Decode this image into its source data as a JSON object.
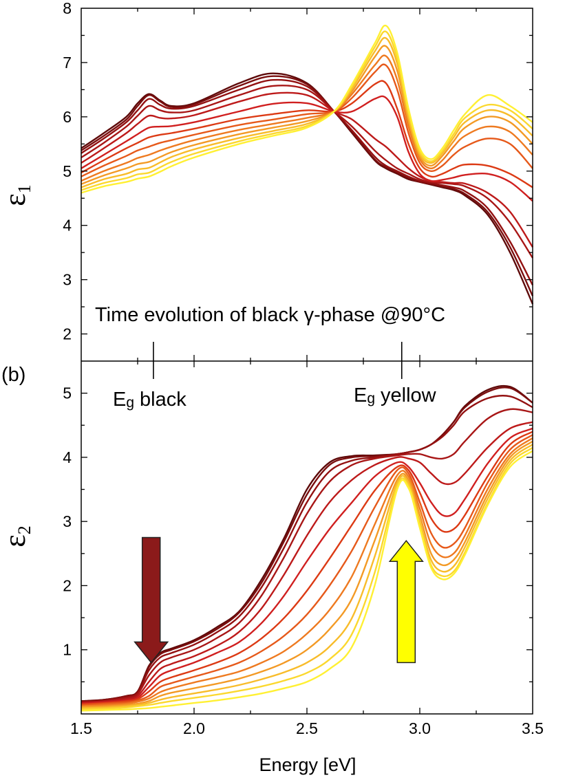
{
  "panel_label": "(b)",
  "chart_data": [
    {
      "type": "line",
      "panel": "top",
      "ylabel": "ε",
      "ylabel_subscript": "1",
      "xlim": [
        1.5,
        3.5
      ],
      "ylim": [
        1.5,
        8.0
      ],
      "yticks": [
        "2",
        "3",
        "4",
        "5",
        "6",
        "7",
        "8"
      ],
      "annotation": "Time evolution of black γ-phase @90°C",
      "colors": [
        "#5e0a0a",
        "#7a0e0e",
        "#931111",
        "#a81616",
        "#bd1a1a",
        "#d01f1f",
        "#dc3a14",
        "#e6591a",
        "#ee7a20",
        "#f39a25",
        "#f8bc2a",
        "#fbd82e",
        "#fff033"
      ],
      "x": [
        1.5,
        1.6,
        1.7,
        1.75,
        1.8,
        1.85,
        1.9,
        2.0,
        2.2,
        2.35,
        2.5,
        2.62,
        2.7,
        2.8,
        2.85,
        2.9,
        2.95,
        3.0,
        3.05,
        3.1,
        3.15,
        3.2,
        3.3,
        3.4,
        3.5
      ],
      "series": [
        {
          "values": [
            5.42,
            5.7,
            6.0,
            6.25,
            6.42,
            6.3,
            6.2,
            6.25,
            6.62,
            6.8,
            6.62,
            6.1,
            5.7,
            5.2,
            5.05,
            4.95,
            4.85,
            4.8,
            4.75,
            4.7,
            4.65,
            4.55,
            4.2,
            3.5,
            2.55
          ]
        },
        {
          "values": [
            5.38,
            5.65,
            5.95,
            6.2,
            6.4,
            6.28,
            6.18,
            6.23,
            6.57,
            6.75,
            6.6,
            6.1,
            5.72,
            5.22,
            5.07,
            4.97,
            4.87,
            4.8,
            4.76,
            4.72,
            4.67,
            4.58,
            4.25,
            3.6,
            2.7
          ]
        },
        {
          "values": [
            5.33,
            5.6,
            5.9,
            6.12,
            6.33,
            6.22,
            6.15,
            6.2,
            6.5,
            6.68,
            6.56,
            6.1,
            5.75,
            5.27,
            5.1,
            5.0,
            4.9,
            4.82,
            4.78,
            4.74,
            4.7,
            4.63,
            4.32,
            3.7,
            2.9
          ]
        },
        {
          "values": [
            5.25,
            5.52,
            5.82,
            6.02,
            6.2,
            6.12,
            6.08,
            6.12,
            6.4,
            6.57,
            6.5,
            6.1,
            5.82,
            5.38,
            5.2,
            5.05,
            4.95,
            4.85,
            4.8,
            4.78,
            4.76,
            4.72,
            4.5,
            4.05,
            3.4
          ]
        },
        {
          "values": [
            5.15,
            5.42,
            5.7,
            5.87,
            6.02,
            5.98,
            5.97,
            6.03,
            6.28,
            6.43,
            6.4,
            6.1,
            5.95,
            5.6,
            5.45,
            5.25,
            5.05,
            4.9,
            4.82,
            4.8,
            4.78,
            4.77,
            4.6,
            4.25,
            3.6
          ]
        },
        {
          "values": [
            5.05,
            5.3,
            5.55,
            5.68,
            5.8,
            5.82,
            5.83,
            5.9,
            6.1,
            6.24,
            6.25,
            6.1,
            6.1,
            6.33,
            6.35,
            6.0,
            5.35,
            4.95,
            4.82,
            4.84,
            4.88,
            4.93,
            4.95,
            4.8,
            4.45
          ]
        },
        {
          "values": [
            4.97,
            5.2,
            5.42,
            5.52,
            5.62,
            5.67,
            5.7,
            5.78,
            5.96,
            6.05,
            6.12,
            6.1,
            6.25,
            6.6,
            6.62,
            6.15,
            5.5,
            5.05,
            4.9,
            4.95,
            5.05,
            5.12,
            5.1,
            4.95,
            4.7
          ]
        },
        {
          "values": [
            4.9,
            5.1,
            5.28,
            5.38,
            5.45,
            5.52,
            5.57,
            5.67,
            5.85,
            5.95,
            6.05,
            6.1,
            6.35,
            6.82,
            6.95,
            6.5,
            5.7,
            5.15,
            5.0,
            5.1,
            5.3,
            5.45,
            5.6,
            5.5,
            5.05
          ]
        },
        {
          "values": [
            4.82,
            5.0,
            5.15,
            5.24,
            5.3,
            5.38,
            5.45,
            5.57,
            5.76,
            5.87,
            5.98,
            6.1,
            6.42,
            6.95,
            7.12,
            6.68,
            5.82,
            5.22,
            5.05,
            5.2,
            5.45,
            5.65,
            5.82,
            5.72,
            5.3
          ]
        },
        {
          "values": [
            4.76,
            4.92,
            5.05,
            5.13,
            5.17,
            5.26,
            5.35,
            5.48,
            5.68,
            5.8,
            5.92,
            6.1,
            6.47,
            7.1,
            7.3,
            6.85,
            5.92,
            5.27,
            5.1,
            5.28,
            5.55,
            5.8,
            6.0,
            5.9,
            5.5
          ]
        },
        {
          "values": [
            4.7,
            4.85,
            4.95,
            5.03,
            5.06,
            5.16,
            5.26,
            5.4,
            5.61,
            5.74,
            5.87,
            6.1,
            6.52,
            7.2,
            7.45,
            6.98,
            6.0,
            5.32,
            5.15,
            5.33,
            5.62,
            5.9,
            6.12,
            6.02,
            5.65
          ]
        },
        {
          "values": [
            4.65,
            4.78,
            4.87,
            4.94,
            4.97,
            5.07,
            5.17,
            5.32,
            5.55,
            5.69,
            5.83,
            6.1,
            6.56,
            7.28,
            7.57,
            7.08,
            6.08,
            5.37,
            5.18,
            5.37,
            5.68,
            5.98,
            6.22,
            6.12,
            5.78
          ]
        },
        {
          "values": [
            4.6,
            4.72,
            4.8,
            4.86,
            4.9,
            4.99,
            5.09,
            5.25,
            5.5,
            5.65,
            5.8,
            6.1,
            6.6,
            7.35,
            7.68,
            7.18,
            6.15,
            5.42,
            5.22,
            5.42,
            5.75,
            6.05,
            6.4,
            6.2,
            5.9
          ]
        }
      ]
    },
    {
      "type": "line",
      "panel": "bottom",
      "ylabel": "ε",
      "ylabel_subscript": "2",
      "xlabel": "Energy [eV]",
      "xlim": [
        1.5,
        3.5
      ],
      "ylim": [
        0.0,
        5.5
      ],
      "xticks": [
        "1.5",
        "2.0",
        "2.5",
        "3.0",
        "3.5"
      ],
      "yticks": [
        "1",
        "2",
        "3",
        "4",
        "5"
      ],
      "annotations": [
        {
          "base": "E",
          "sub": "g",
          "text": "black",
          "energy": 1.82
        },
        {
          "base": "E",
          "sub": "g",
          "text": "yellow",
          "energy": 2.92
        }
      ],
      "arrows": [
        {
          "direction": "down",
          "color": "#8b1a1a",
          "energy": 1.81
        },
        {
          "direction": "up",
          "color": "#ffff00",
          "energy": 2.94
        }
      ],
      "colors": [
        "#5e0a0a",
        "#7a0e0e",
        "#931111",
        "#a81616",
        "#bd1a1a",
        "#d01f1f",
        "#dc3a14",
        "#e6591a",
        "#ee7a20",
        "#f39a25",
        "#f8bc2a",
        "#fbd82e",
        "#fff033"
      ],
      "x": [
        1.5,
        1.6,
        1.7,
        1.75,
        1.8,
        1.85,
        1.9,
        2.0,
        2.1,
        2.2,
        2.3,
        2.4,
        2.5,
        2.6,
        2.7,
        2.8,
        2.9,
        2.95,
        3.0,
        3.05,
        3.1,
        3.15,
        3.2,
        3.3,
        3.4,
        3.5
      ],
      "series": [
        {
          "values": [
            0.2,
            0.22,
            0.28,
            0.35,
            0.75,
            0.95,
            1.02,
            1.15,
            1.35,
            1.6,
            2.1,
            2.75,
            3.5,
            3.92,
            4.02,
            4.03,
            4.05,
            4.08,
            4.12,
            4.2,
            4.35,
            4.55,
            4.8,
            5.05,
            5.1,
            4.85
          ]
        },
        {
          "values": [
            0.2,
            0.22,
            0.28,
            0.35,
            0.73,
            0.93,
            1.0,
            1.13,
            1.32,
            1.58,
            2.05,
            2.7,
            3.42,
            3.88,
            4.0,
            4.02,
            4.05,
            4.08,
            4.12,
            4.2,
            4.35,
            4.55,
            4.78,
            5.02,
            5.08,
            4.85
          ]
        },
        {
          "values": [
            0.19,
            0.21,
            0.27,
            0.33,
            0.68,
            0.88,
            0.95,
            1.08,
            1.27,
            1.52,
            1.98,
            2.6,
            3.3,
            3.78,
            3.95,
            4.0,
            4.05,
            4.08,
            4.12,
            4.2,
            4.32,
            4.5,
            4.72,
            4.92,
            4.95,
            4.78
          ]
        },
        {
          "values": [
            0.18,
            0.2,
            0.25,
            0.31,
            0.6,
            0.8,
            0.88,
            1.0,
            1.18,
            1.42,
            1.85,
            2.45,
            3.12,
            3.62,
            3.88,
            3.98,
            4.03,
            4.05,
            4.05,
            4.0,
            3.98,
            4.05,
            4.25,
            4.6,
            4.75,
            4.7
          ]
        },
        {
          "values": [
            0.17,
            0.19,
            0.23,
            0.28,
            0.5,
            0.7,
            0.78,
            0.9,
            1.06,
            1.28,
            1.65,
            2.18,
            2.78,
            3.3,
            3.65,
            3.88,
            4.0,
            3.98,
            3.92,
            3.75,
            3.6,
            3.6,
            3.75,
            4.15,
            4.45,
            4.55
          ]
        },
        {
          "values": [
            0.16,
            0.18,
            0.21,
            0.25,
            0.42,
            0.6,
            0.68,
            0.8,
            0.95,
            1.12,
            1.42,
            1.85,
            2.38,
            2.88,
            3.3,
            3.7,
            3.92,
            3.85,
            3.6,
            3.3,
            3.1,
            3.12,
            3.35,
            3.9,
            4.3,
            4.45
          ]
        },
        {
          "values": [
            0.15,
            0.17,
            0.2,
            0.23,
            0.35,
            0.5,
            0.57,
            0.68,
            0.8,
            0.95,
            1.18,
            1.5,
            1.92,
            2.42,
            2.95,
            3.48,
            3.85,
            3.8,
            3.45,
            3.05,
            2.85,
            2.88,
            3.1,
            3.7,
            4.2,
            4.4
          ]
        },
        {
          "values": [
            0.14,
            0.16,
            0.18,
            0.21,
            0.28,
            0.42,
            0.48,
            0.58,
            0.68,
            0.8,
            0.98,
            1.22,
            1.55,
            2.0,
            2.55,
            3.22,
            3.8,
            3.75,
            3.3,
            2.82,
            2.6,
            2.65,
            2.9,
            3.6,
            4.12,
            4.35
          ]
        },
        {
          "values": [
            0.12,
            0.14,
            0.16,
            0.19,
            0.24,
            0.34,
            0.4,
            0.49,
            0.57,
            0.66,
            0.8,
            0.98,
            1.25,
            1.62,
            2.15,
            2.95,
            3.72,
            3.7,
            3.2,
            2.65,
            2.45,
            2.5,
            2.78,
            3.5,
            4.05,
            4.3
          ]
        },
        {
          "values": [
            0.11,
            0.12,
            0.14,
            0.16,
            0.2,
            0.28,
            0.33,
            0.4,
            0.47,
            0.55,
            0.66,
            0.8,
            1.0,
            1.32,
            1.8,
            2.7,
            3.65,
            3.65,
            3.1,
            2.5,
            2.32,
            2.4,
            2.68,
            3.42,
            4.0,
            4.25
          ]
        },
        {
          "values": [
            0.09,
            0.1,
            0.12,
            0.14,
            0.17,
            0.22,
            0.26,
            0.32,
            0.38,
            0.45,
            0.54,
            0.65,
            0.8,
            1.05,
            1.5,
            2.45,
            3.6,
            3.6,
            3.0,
            2.4,
            2.22,
            2.3,
            2.6,
            3.35,
            3.95,
            4.2
          ]
        },
        {
          "values": [
            0.07,
            0.08,
            0.1,
            0.12,
            0.14,
            0.17,
            0.2,
            0.25,
            0.3,
            0.36,
            0.43,
            0.52,
            0.64,
            0.85,
            1.25,
            2.2,
            3.55,
            3.55,
            2.95,
            2.32,
            2.15,
            2.22,
            2.52,
            3.28,
            3.9,
            4.15
          ]
        },
        {
          "values": [
            0.05,
            0.06,
            0.07,
            0.08,
            0.09,
            0.11,
            0.13,
            0.17,
            0.21,
            0.26,
            0.32,
            0.4,
            0.5,
            0.7,
            1.05,
            2.0,
            3.5,
            3.52,
            2.9,
            2.28,
            2.1,
            2.18,
            2.48,
            3.25,
            3.85,
            4.1
          ]
        }
      ]
    }
  ]
}
